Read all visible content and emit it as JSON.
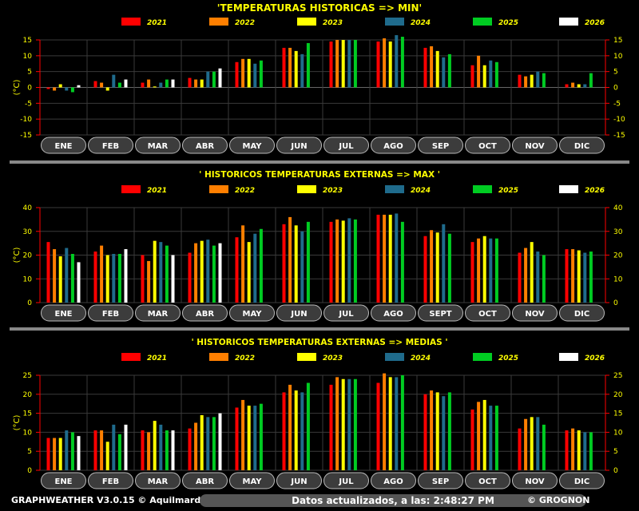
{
  "footer": {
    "left": "GRAPHWEATHER V3.0.15 © Aquilmard",
    "middle": "Datos actualizados, a las: 2:48:27 PM",
    "right": "© GROGNON"
  },
  "legend_colors": {
    "2021": "#ff0000",
    "2022": "#ff7f00",
    "2023": "#ffff00",
    "2024": "#1f6b8c",
    "2025": "#00cc22",
    "2026": "#ffffff"
  },
  "chart_data": [
    {
      "type": "bar",
      "title": "'TEMPERATURAS HISTORICAS  => MIN'",
      "ylabel": "(°C)",
      "ylim": [
        -15,
        15
      ],
      "yticks": [
        15,
        10,
        5,
        0,
        -5,
        -10,
        -15
      ],
      "categories": [
        "ENE",
        "FEB",
        "MAR",
        "ABR",
        "MAY",
        "JUN",
        "JUL",
        "AGO",
        "SEP",
        "OCT",
        "NOV",
        "DIC"
      ],
      "series": [
        {
          "name": "2021",
          "values": [
            -0.5,
            2,
            1.5,
            3,
            8,
            12.5,
            14.5,
            14.5,
            12.5,
            7,
            4,
            1
          ]
        },
        {
          "name": "2022",
          "values": [
            -1,
            1.5,
            2.5,
            2.5,
            9,
            12.5,
            15,
            15.5,
            13,
            10,
            3.5,
            1.5
          ]
        },
        {
          "name": "2023",
          "values": [
            1,
            -1,
            0.3,
            2.5,
            9,
            11.5,
            15,
            14.5,
            11.5,
            7,
            4,
            1
          ]
        },
        {
          "name": "2024",
          "values": [
            -1,
            4,
            1.5,
            5,
            7.5,
            10.5,
            15,
            16.5,
            9.5,
            8.5,
            5,
            1
          ]
        },
        {
          "name": "2025",
          "values": [
            -1.5,
            1.5,
            2.5,
            5,
            8.5,
            14,
            15,
            16,
            10.5,
            8,
            4.5,
            4.5
          ]
        },
        {
          "name": "2026",
          "values": [
            0.7,
            2.5,
            2.5,
            6,
            null,
            null,
            null,
            null,
            null,
            null,
            null,
            null
          ]
        }
      ]
    },
    {
      "type": "bar",
      "title": "' HISTORICOS TEMPERATURAS EXTERNAS => MAX '",
      "ylabel": "(°C)",
      "ylim": [
        0,
        40
      ],
      "yticks": [
        40,
        30,
        20,
        10,
        0
      ],
      "categories": [
        "ENE",
        "FEB",
        "MAR",
        "ABR",
        "MAY",
        "JUN",
        "JUL",
        "AGO",
        "SEPT",
        "OCT",
        "NOV",
        "DIC"
      ],
      "series": [
        {
          "name": "2021",
          "values": [
            25.5,
            21.5,
            20,
            21,
            27.5,
            33,
            34,
            37,
            28,
            25.5,
            21,
            22.5
          ]
        },
        {
          "name": "2022",
          "values": [
            22.5,
            24,
            17.5,
            25,
            32.5,
            36,
            35,
            37,
            30.5,
            27,
            23,
            22.5
          ]
        },
        {
          "name": "2023",
          "values": [
            19.5,
            20,
            26,
            26,
            25.5,
            32.5,
            34.5,
            37,
            29.5,
            28,
            25.5,
            22
          ]
        },
        {
          "name": "2024",
          "values": [
            23,
            20.5,
            25.5,
            26.5,
            29,
            30,
            35.5,
            37.5,
            33,
            27,
            21.5,
            21
          ]
        },
        {
          "name": "2025",
          "values": [
            20.5,
            20.5,
            24,
            24,
            31,
            34,
            35,
            34,
            29,
            27,
            20,
            21.5
          ]
        },
        {
          "name": "2026",
          "values": [
            17,
            22.5,
            20,
            25,
            null,
            null,
            null,
            null,
            null,
            null,
            null,
            null
          ]
        }
      ]
    },
    {
      "type": "bar",
      "title": "' HISTORICOS TEMPERATURAS EXTERNAS => MEDIAS '",
      "ylabel": "(°C)",
      "ylim": [
        0,
        25
      ],
      "yticks": [
        25,
        20,
        15,
        10,
        5,
        0
      ],
      "categories": [
        "ENE",
        "FEB",
        "MAR",
        "ABR",
        "MAY",
        "JUN",
        "JUL",
        "AGO",
        "SEP",
        "OCT",
        "NOV",
        "DIC"
      ],
      "series": [
        {
          "name": "2021",
          "values": [
            8.5,
            10.5,
            10.5,
            11,
            16.5,
            20.5,
            22.5,
            23,
            20,
            16,
            11,
            10.5
          ]
        },
        {
          "name": "2022",
          "values": [
            8.5,
            10.5,
            10,
            12.5,
            18.5,
            22.5,
            24.5,
            25.5,
            21,
            18,
            13.5,
            11
          ]
        },
        {
          "name": "2023",
          "values": [
            8.5,
            7.5,
            13,
            14.5,
            17,
            21,
            24,
            24.5,
            20.5,
            18.5,
            14,
            10.5
          ]
        },
        {
          "name": "2024",
          "values": [
            10.5,
            12,
            12,
            14,
            17,
            20.5,
            24,
            24.5,
            19.5,
            17,
            14,
            10
          ]
        },
        {
          "name": "2025",
          "values": [
            10,
            9.5,
            10.5,
            14,
            17.5,
            23,
            24,
            25,
            20.5,
            17,
            12,
            10
          ]
        },
        {
          "name": "2026",
          "values": [
            9,
            12,
            10.5,
            15,
            null,
            null,
            null,
            null,
            null,
            null,
            null,
            null
          ]
        }
      ]
    }
  ]
}
